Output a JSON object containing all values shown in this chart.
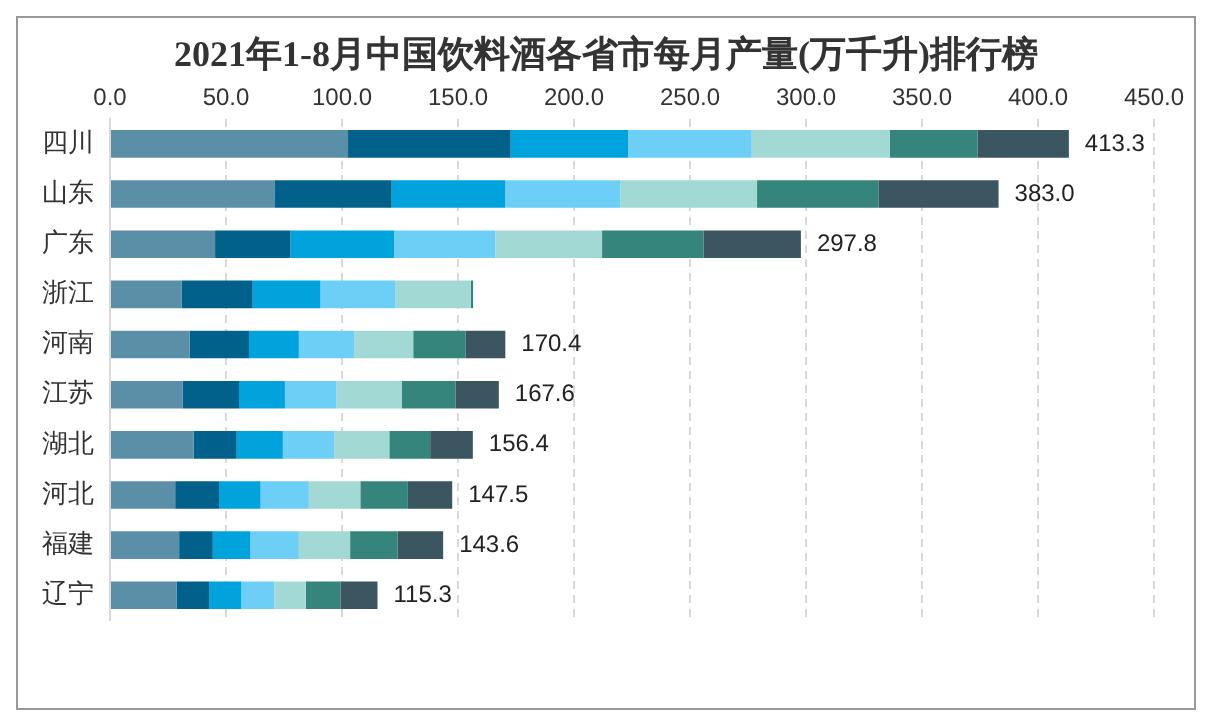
{
  "chart_data": {
    "type": "bar",
    "orientation": "horizontal",
    "stacked": true,
    "title": "2021年1-8月中国饮料酒各省市每月产量(万千升)排行榜",
    "categories": [
      "四川",
      "山东",
      "广东",
      "浙江",
      "河南",
      "江苏",
      "湖北",
      "河北",
      "福建",
      "辽宁"
    ],
    "series": [
      {
        "color": "#5b8fa8",
        "values": [
          102.6,
          71.1,
          45.3,
          30.8,
          34.4,
          31.4,
          36.1,
          28.1,
          29.8,
          28.8
        ]
      },
      {
        "color": "#01618a",
        "values": [
          70.1,
          50.3,
          32.5,
          30.7,
          25.5,
          24.2,
          18.5,
          18.9,
          14.5,
          13.9
        ]
      },
      {
        "color": "#00a3dc",
        "values": [
          50.6,
          49.0,
          44.6,
          29.2,
          21.5,
          19.8,
          19.9,
          17.9,
          16.2,
          13.9
        ]
      },
      {
        "color": "#6dcff6",
        "values": [
          53.3,
          49.6,
          43.7,
          32.4,
          23.8,
          22.2,
          22.1,
          20.8,
          20.9,
          14.2
        ]
      },
      {
        "color": "#a3d9d4",
        "values": [
          59.6,
          58.9,
          46.0,
          32.4,
          25.5,
          28.1,
          23.8,
          22.2,
          22.1,
          13.6
        ]
      },
      {
        "color": "#35857c",
        "values": [
          37.7,
          52.3,
          43.7,
          1.0,
          22.5,
          23.2,
          17.6,
          20.5,
          20.5,
          14.9
        ]
      },
      {
        "color": "#3b5561",
        "values": [
          39.4,
          51.8,
          42.0,
          null,
          17.2,
          18.7,
          18.4,
          19.1,
          19.6,
          16.0
        ]
      }
    ],
    "totals": [
      "413.3",
      "383.0",
      "297.8",
      null,
      "170.4",
      "167.6",
      "156.4",
      "147.5",
      "143.6",
      "115.3"
    ],
    "xlim": [
      0,
      450
    ],
    "xticks": [
      {
        "value": 0,
        "label": "0.0"
      },
      {
        "value": 50,
        "label": "50.0"
      },
      {
        "value": 100,
        "label": "100.0"
      },
      {
        "value": 150,
        "label": "150.0"
      },
      {
        "value": 200,
        "label": "200.0"
      },
      {
        "value": 250,
        "label": "250.0"
      },
      {
        "value": 300,
        "label": "300.0"
      },
      {
        "value": 350,
        "label": "350.0"
      },
      {
        "value": 400,
        "label": "400.0"
      },
      {
        "value": 450,
        "label": "450.0"
      }
    ],
    "grid": "x",
    "legend": false
  }
}
